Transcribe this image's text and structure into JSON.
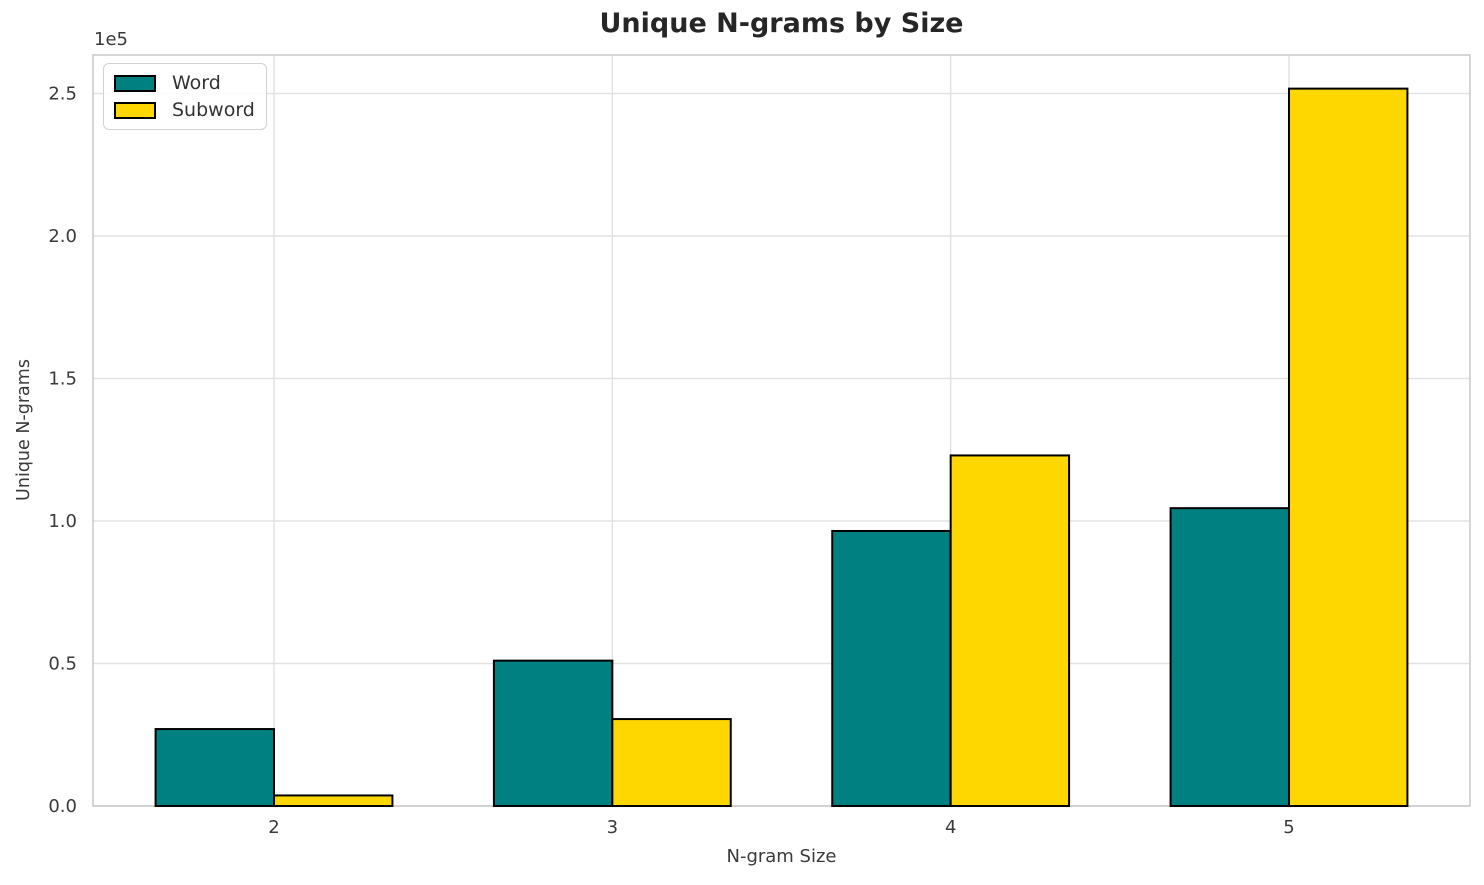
{
  "chart_data": {
    "type": "bar",
    "title": "Unique N-grams by Size",
    "xlabel": "N-gram Size",
    "ylabel": "Unique N-grams",
    "y_offset_label": "1e5",
    "categories": [
      "2",
      "3",
      "4",
      "5"
    ],
    "series": [
      {
        "name": "Word",
        "color": "#008080",
        "values": [
          27000,
          51000,
          96500,
          104500
        ]
      },
      {
        "name": "Subword",
        "color": "#FFD700",
        "values": [
          3700,
          30500,
          123000,
          251700
        ]
      }
    ],
    "bar_edge_color": "#000000",
    "bar_width": 0.35,
    "y_ticks": [
      0,
      50000,
      100000,
      150000,
      200000,
      250000
    ],
    "y_tick_labels": [
      "0.0",
      "0.5",
      "1.0",
      "1.5",
      "2.0",
      "2.5"
    ],
    "ylim": [
      0,
      263500
    ],
    "xlim": [
      1.465,
      5.535
    ],
    "grid": true,
    "grid_color": "#e2e2e2",
    "spine_color": "#c9c9c9",
    "tick_label_color": "#3a3a3a",
    "legend_position": "upper left",
    "background_color": "#ffffff"
  }
}
